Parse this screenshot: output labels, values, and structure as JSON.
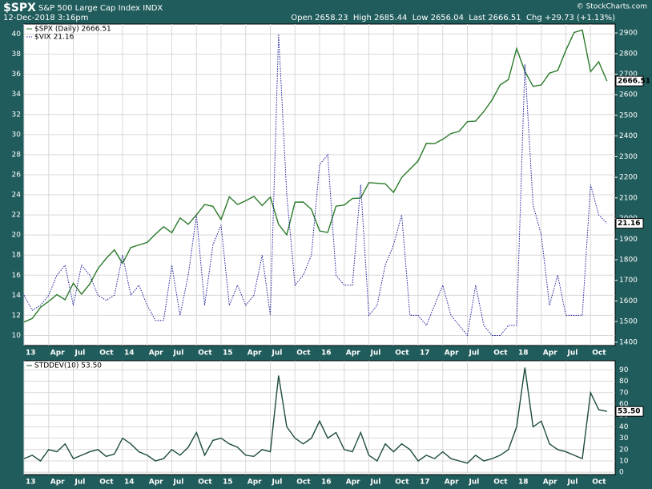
{
  "header": {
    "symbol": "$SPX",
    "name": "S&P 500 Large Cap Index INDX",
    "date": "12-Dec-2018 3:16pm",
    "quote": "Open 2658.23  High 2685.44  Low 2656.04  Last 2666.51  Chg +29.73 (+1.13%)",
    "credit": "© StockCharts.com"
  },
  "chart_data": [
    {
      "type": "line",
      "yaxis": "left",
      "grid": true,
      "x": [
        "2013-01",
        "2013-02",
        "2013-03",
        "2013-04",
        "2013-05",
        "2013-06",
        "2013-07",
        "2013-08",
        "2013-09",
        "2013-10",
        "2013-11",
        "2013-12",
        "2014-01",
        "2014-02",
        "2014-03",
        "2014-04",
        "2014-05",
        "2014-06",
        "2014-07",
        "2014-08",
        "2014-09",
        "2014-10",
        "2014-11",
        "2014-12",
        "2015-01",
        "2015-02",
        "2015-03",
        "2015-04",
        "2015-05",
        "2015-06",
        "2015-07",
        "2015-08",
        "2015-09",
        "2015-10",
        "2015-11",
        "2015-12",
        "2016-01",
        "2016-02",
        "2016-03",
        "2016-04",
        "2016-05",
        "2016-06",
        "2016-07",
        "2016-08",
        "2016-09",
        "2016-10",
        "2016-11",
        "2016-12",
        "2017-01",
        "2017-02",
        "2017-03",
        "2017-04",
        "2017-05",
        "2017-06",
        "2017-07",
        "2017-08",
        "2017-09",
        "2017-10",
        "2017-11",
        "2017-12",
        "2018-01",
        "2018-02",
        "2018-03",
        "2018-04",
        "2018-05",
        "2018-06",
        "2018-07",
        "2018-08",
        "2018-09",
        "2018-10",
        "2018-11",
        "2018-12"
      ],
      "xlim": [
        "2013-01",
        "2019-01"
      ],
      "xticks": [
        {
          "value": "2013-01",
          "label": "13"
        },
        {
          "value": "2013-04",
          "label": "Apr"
        },
        {
          "value": "2013-07",
          "label": "Jul"
        },
        {
          "value": "2013-10",
          "label": "Oct"
        },
        {
          "value": "2014-01",
          "label": "14"
        },
        {
          "value": "2014-04",
          "label": "Apr"
        },
        {
          "value": "2014-07",
          "label": "Jul"
        },
        {
          "value": "2014-10",
          "label": "Oct"
        },
        {
          "value": "2015-01",
          "label": "15"
        },
        {
          "value": "2015-04",
          "label": "Apr"
        },
        {
          "value": "2015-07",
          "label": "Jul"
        },
        {
          "value": "2015-10",
          "label": "Oct"
        },
        {
          "value": "2016-01",
          "label": "16"
        },
        {
          "value": "2016-04",
          "label": "Apr"
        },
        {
          "value": "2016-07",
          "label": "Jul"
        },
        {
          "value": "2016-10",
          "label": "Oct"
        },
        {
          "value": "2017-01",
          "label": "17"
        },
        {
          "value": "2017-04",
          "label": "Apr"
        },
        {
          "value": "2017-07",
          "label": "Jul"
        },
        {
          "value": "2017-10",
          "label": "Oct"
        },
        {
          "value": "2018-01",
          "label": "18"
        },
        {
          "value": "2018-04",
          "label": "Apr"
        },
        {
          "value": "2018-07",
          "label": "Jul"
        },
        {
          "value": "2018-10",
          "label": "Oct"
        }
      ],
      "ylim": [
        9,
        41
      ],
      "yticks": [
        10,
        12,
        14,
        16,
        18,
        20,
        22,
        24,
        26,
        28,
        30,
        32,
        34,
        36,
        38,
        40
      ],
      "y2lim": [
        1384,
        2943
      ],
      "y2ticks": [
        1400,
        1500,
        1600,
        1700,
        1800,
        1900,
        2000,
        2100,
        2200,
        2300,
        2400,
        2500,
        2600,
        2700,
        2800,
        2900
      ],
      "series": [
        {
          "name": "$SPX (Daily) 2666.51",
          "color": "#2a7a2a",
          "axis": "y2",
          "last_label": "2666.51",
          "values": [
            1498,
            1515,
            1569,
            1598,
            1631,
            1606,
            1686,
            1633,
            1682,
            1757,
            1806,
            1848,
            1783,
            1859,
            1872,
            1884,
            1924,
            1960,
            1931,
            2003,
            1972,
            2018,
            2068,
            2059,
            1995,
            2105,
            2068,
            2086,
            2107,
            2063,
            2104,
            1972,
            1920,
            2079,
            2080,
            2044,
            1940,
            1932,
            2060,
            2065,
            2097,
            2099,
            2174,
            2171,
            2168,
            2126,
            2199,
            2239,
            2279,
            2364,
            2363,
            2384,
            2412,
            2423,
            2470,
            2472,
            2519,
            2575,
            2648,
            2674,
            2824,
            2714,
            2641,
            2648,
            2705,
            2718,
            2816,
            2902,
            2914,
            2712,
            2760,
            2666.51
          ]
        },
        {
          "name": "$VIX 21.16",
          "color": "#1a1a99",
          "style": "dotted",
          "last_label": "21.16",
          "values": [
            14,
            12.5,
            13,
            14,
            16,
            17,
            13,
            17,
            16,
            14,
            13.5,
            14,
            18,
            14,
            15,
            13,
            11.5,
            11.5,
            17,
            12,
            16,
            22,
            13,
            19,
            21,
            13,
            15,
            13,
            14,
            18,
            12,
            40,
            24,
            15,
            16,
            18,
            27,
            28,
            16,
            15,
            15,
            25,
            12,
            13,
            17,
            19,
            22,
            12,
            12,
            11,
            13,
            15,
            12,
            11,
            10,
            15,
            11,
            10,
            10,
            11,
            11,
            37,
            23,
            20,
            13,
            16,
            12,
            12,
            12,
            25,
            22,
            21.16
          ]
        }
      ]
    },
    {
      "type": "line",
      "yaxis": "right",
      "grid": true,
      "x": [
        "2013-01",
        "2013-02",
        "2013-03",
        "2013-04",
        "2013-05",
        "2013-06",
        "2013-07",
        "2013-08",
        "2013-09",
        "2013-10",
        "2013-11",
        "2013-12",
        "2014-01",
        "2014-02",
        "2014-03",
        "2014-04",
        "2014-05",
        "2014-06",
        "2014-07",
        "2014-08",
        "2014-09",
        "2014-10",
        "2014-11",
        "2014-12",
        "2015-01",
        "2015-02",
        "2015-03",
        "2015-04",
        "2015-05",
        "2015-06",
        "2015-07",
        "2015-08",
        "2015-09",
        "2015-10",
        "2015-11",
        "2015-12",
        "2016-01",
        "2016-02",
        "2016-03",
        "2016-04",
        "2016-05",
        "2016-06",
        "2016-07",
        "2016-08",
        "2016-09",
        "2016-10",
        "2016-11",
        "2016-12",
        "2017-01",
        "2017-02",
        "2017-03",
        "2017-04",
        "2017-05",
        "2017-06",
        "2017-07",
        "2017-08",
        "2017-09",
        "2017-10",
        "2017-11",
        "2017-12",
        "2018-01",
        "2018-02",
        "2018-03",
        "2018-04",
        "2018-05",
        "2018-06",
        "2018-07",
        "2018-08",
        "2018-09",
        "2018-10",
        "2018-11",
        "2018-12"
      ],
      "xlim": [
        "2013-01",
        "2019-01"
      ],
      "xticks": [
        {
          "value": "2013-01",
          "label": "13"
        },
        {
          "value": "2013-04",
          "label": "Apr"
        },
        {
          "value": "2013-07",
          "label": "Jul"
        },
        {
          "value": "2013-10",
          "label": "Oct"
        },
        {
          "value": "2014-01",
          "label": "14"
        },
        {
          "value": "2014-04",
          "label": "Apr"
        },
        {
          "value": "2014-07",
          "label": "Jul"
        },
        {
          "value": "2014-10",
          "label": "Oct"
        },
        {
          "value": "2015-01",
          "label": "15"
        },
        {
          "value": "2015-04",
          "label": "Apr"
        },
        {
          "value": "2015-07",
          "label": "Jul"
        },
        {
          "value": "2015-10",
          "label": "Oct"
        },
        {
          "value": "2016-01",
          "label": "16"
        },
        {
          "value": "2016-04",
          "label": "Apr"
        },
        {
          "value": "2016-07",
          "label": "Jul"
        },
        {
          "value": "2016-10",
          "label": "Oct"
        },
        {
          "value": "2017-01",
          "label": "17"
        },
        {
          "value": "2017-04",
          "label": "Apr"
        },
        {
          "value": "2017-07",
          "label": "Jul"
        },
        {
          "value": "2017-10",
          "label": "Oct"
        },
        {
          "value": "2018-01",
          "label": "18"
        },
        {
          "value": "2018-04",
          "label": "Apr"
        },
        {
          "value": "2018-07",
          "label": "Jul"
        },
        {
          "value": "2018-10",
          "label": "Oct"
        }
      ],
      "ylim": [
        -2,
        98
      ],
      "yticks": [
        0,
        10,
        20,
        30,
        40,
        50,
        60,
        70,
        80,
        90
      ],
      "series": [
        {
          "name": "STDDEV(10) 53.50",
          "color": "#1e4d3a",
          "last_label": "53.50",
          "values": [
            12,
            15,
            10,
            20,
            18,
            25,
            12,
            15,
            18,
            20,
            14,
            16,
            30,
            25,
            18,
            15,
            10,
            12,
            20,
            15,
            22,
            35,
            15,
            28,
            30,
            25,
            22,
            15,
            14,
            20,
            18,
            85,
            40,
            30,
            25,
            30,
            45,
            30,
            35,
            20,
            18,
            35,
            15,
            10,
            25,
            18,
            25,
            20,
            10,
            15,
            12,
            18,
            12,
            10,
            8,
            15,
            10,
            12,
            15,
            20,
            40,
            92,
            40,
            45,
            25,
            20,
            18,
            15,
            12,
            70,
            55,
            53.5
          ]
        }
      ]
    }
  ]
}
